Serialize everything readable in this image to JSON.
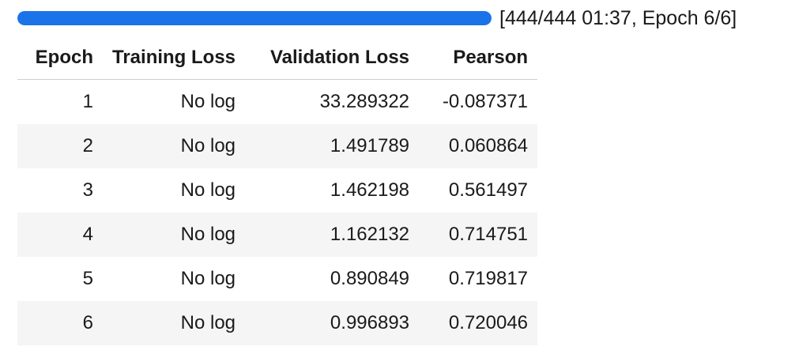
{
  "progress": {
    "fraction": 1.0,
    "label": "[444/444 01:37, Epoch 6/6]",
    "fill_color": "#1a73e8",
    "track_color": "#e6e6e6"
  },
  "table": {
    "headers": [
      "Epoch",
      "Training Loss",
      "Validation Loss",
      "Pearson"
    ],
    "rows": [
      [
        "1",
        "No log",
        "33.289322",
        "-0.087371"
      ],
      [
        "2",
        "No log",
        "1.491789",
        "0.060864"
      ],
      [
        "3",
        "No log",
        "1.462198",
        "0.561497"
      ],
      [
        "4",
        "No log",
        "1.162132",
        "0.714751"
      ],
      [
        "5",
        "No log",
        "0.890849",
        "0.719817"
      ],
      [
        "6",
        "No log",
        "0.996893",
        "0.720046"
      ]
    ]
  }
}
